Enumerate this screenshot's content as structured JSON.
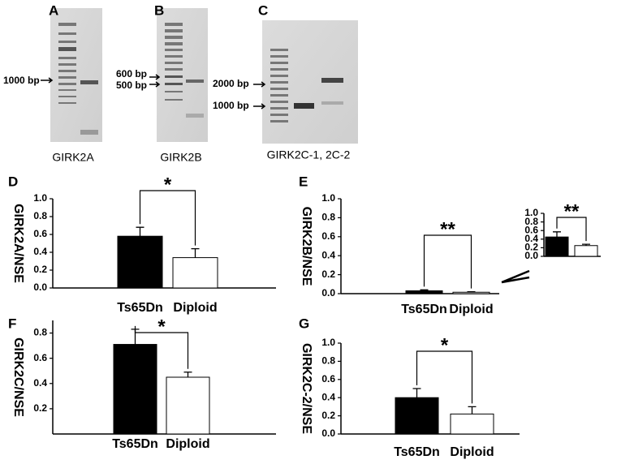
{
  "gels": [
    {
      "panel": "A",
      "caption": "GIRK2A",
      "markers": [
        "1000 bp"
      ]
    },
    {
      "panel": "B",
      "caption": "GIRK2B",
      "markers": [
        "600 bp",
        "500 bp"
      ]
    },
    {
      "panel": "C",
      "caption": "GIRK2C-1, 2C-2",
      "markers": [
        "2000 bp",
        "1000 bp"
      ]
    }
  ],
  "chart_data": [
    {
      "type": "bar",
      "panel": "D",
      "ylabel": "GIRK2A/NSE",
      "categories": [
        "Ts65Dn",
        "Diploid"
      ],
      "values": [
        0.58,
        0.34
      ],
      "errors": [
        0.1,
        0.1
      ],
      "colors": [
        "#000000",
        "#ffffff"
      ],
      "annotation": "*",
      "ylim": [
        0,
        1
      ],
      "yticks": [
        {
          "value": 0,
          "label": "0.0"
        },
        0.2,
        0.4,
        0.6,
        0.8,
        {
          "value": 1,
          "label": "1.0"
        }
      ]
    },
    {
      "type": "bar",
      "panel": "E",
      "ylabel": "GIRK2B/NSE",
      "categories": [
        "Ts65Dn",
        "Diploid"
      ],
      "values": [
        0.03,
        0.015
      ],
      "errors": [
        0.01,
        0.005
      ],
      "colors": [
        "#000000",
        "#ffffff"
      ],
      "annotation": "**",
      "ylim": [
        0,
        1
      ],
      "yticks": [
        {
          "value": 0,
          "label": "0.0"
        },
        0.2,
        0.4,
        0.6,
        0.8,
        {
          "value": 1,
          "label": "1.0"
        }
      ]
    },
    {
      "type": "bar",
      "categories": [
        null,
        null
      ],
      "values": [
        0.45,
        0.25
      ],
      "errors": [
        0.12,
        0.03
      ],
      "colors": [
        "#000000",
        "#ffffff"
      ],
      "annotation": "**",
      "ylim": [
        0,
        1
      ],
      "yticks": [
        {
          "value": 0,
          "label": "0.0"
        },
        0.2,
        0.4,
        0.6,
        0.8,
        {
          "value": 1,
          "label": "1.0"
        }
      ]
    },
    {
      "type": "bar",
      "panel": "F",
      "ylabel": "GIRK2C/NSE",
      "categories": [
        "Ts65Dn",
        "Diploid"
      ],
      "values": [
        0.71,
        0.45
      ],
      "errors": [
        0.12,
        0.04
      ],
      "colors": [
        "#000000",
        "#ffffff"
      ],
      "annotation": "*",
      "ylim": [
        0,
        0.9
      ],
      "yticks": [
        0.2,
        0.4,
        0.6,
        0.8
      ]
    },
    {
      "type": "bar",
      "panel": "G",
      "ylabel": "GIRK2C-2/NSE",
      "categories": [
        "Ts65Dn",
        "Diploid"
      ],
      "values": [
        0.4,
        0.22
      ],
      "errors": [
        0.1,
        0.08
      ],
      "colors": [
        "#000000",
        "#ffffff"
      ],
      "annotation": "*",
      "ylim": [
        0,
        1
      ],
      "yticks": [
        {
          "value": 0,
          "label": "0.0"
        },
        0.2,
        0.4,
        0.6,
        0.8,
        {
          "value": 1,
          "label": "1.0"
        }
      ]
    }
  ]
}
